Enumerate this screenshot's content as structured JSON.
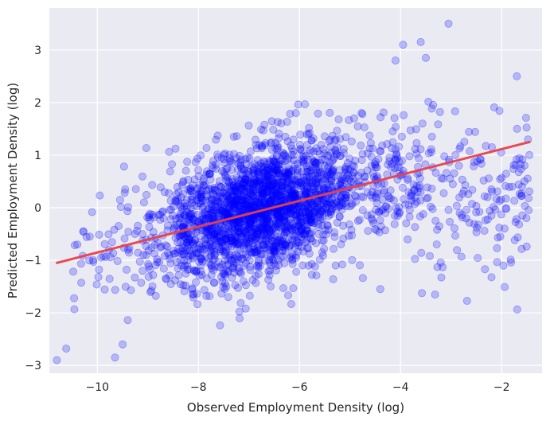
{
  "chart_data": {
    "type": "scatter",
    "title": "",
    "xlabel": "Observed Employment Density (log)",
    "ylabel": "Predicted Employment Density (log)",
    "xlim": [
      -10.95,
      -1.2
    ],
    "ylim": [
      -3.15,
      3.8
    ],
    "x_ticks": [
      -10,
      -8,
      -6,
      -4,
      -2
    ],
    "y_ticks": [
      -3,
      -2,
      -1,
      0,
      1,
      2,
      3
    ],
    "grid": true,
    "background": "#EAEAF2",
    "point_color": "#0000FF",
    "line_color": "#E8414A",
    "point_count": 2600,
    "regression_line": {
      "x": [
        -10.8,
        -1.45
      ],
      "y": [
        -1.05,
        1.25
      ]
    },
    "highlight_points": [
      {
        "x": -10.8,
        "y": -2.9
      },
      {
        "x": -10.15,
        "y": -0.55
      },
      {
        "x": -9.65,
        "y": -2.85
      },
      {
        "x": -9.5,
        "y": -2.6
      },
      {
        "x": -9.55,
        "y": 0.15
      },
      {
        "x": -4.4,
        "y": -1.55
      },
      {
        "x": -4.1,
        "y": 2.8
      },
      {
        "x": -3.95,
        "y": 3.1
      },
      {
        "x": -3.6,
        "y": 3.15
      },
      {
        "x": -3.05,
        "y": 3.5
      },
      {
        "x": -3.5,
        "y": 2.85
      },
      {
        "x": -1.7,
        "y": 2.5
      },
      {
        "x": -1.45,
        "y": 1.0
      },
      {
        "x": -1.55,
        "y": 0.5
      },
      {
        "x": -2.2,
        "y": -0.15
      }
    ]
  }
}
